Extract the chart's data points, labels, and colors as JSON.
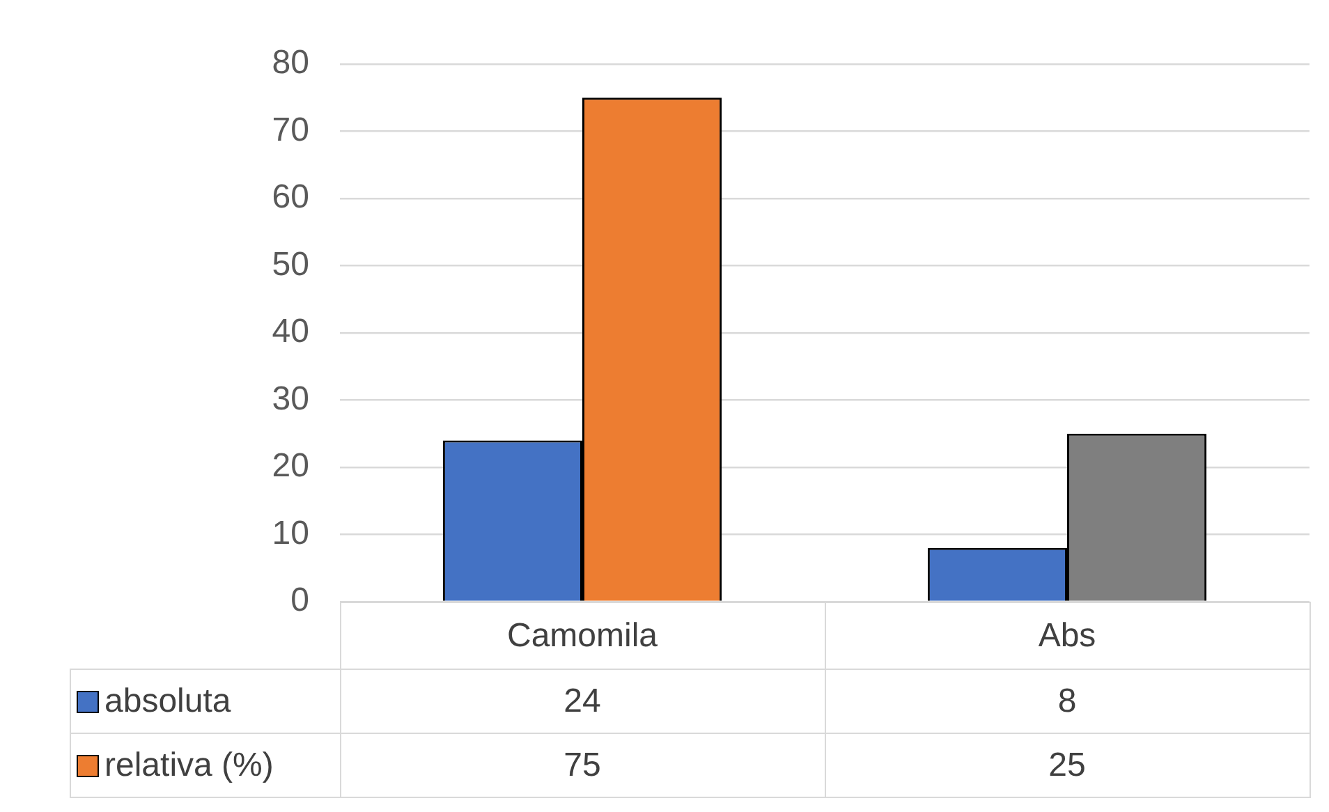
{
  "chart_data": {
    "type": "bar",
    "categories": [
      "Camomila",
      "Abs"
    ],
    "series": [
      {
        "name": "absoluta",
        "color": "#4472c4",
        "values": [
          24,
          8
        ]
      },
      {
        "name": "relativa (%)",
        "color": "#ed7d31",
        "colors": [
          "#ed7d31",
          "#7f7f7f"
        ],
        "values": [
          75,
          25
        ]
      }
    ],
    "ylim": [
      0,
      80
    ],
    "yticks": [
      0,
      10,
      20,
      30,
      40,
      50,
      60,
      70,
      80
    ],
    "grid": "y",
    "legend": "bottom",
    "data_labels": true
  }
}
